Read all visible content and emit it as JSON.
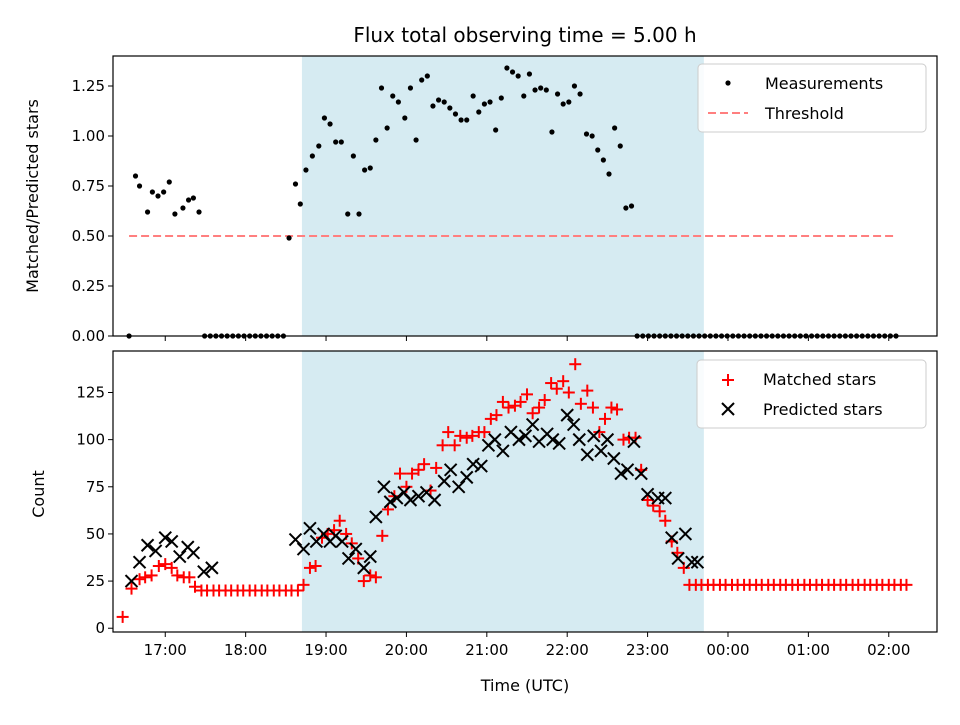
{
  "chart_data": [
    {
      "type": "scatter",
      "title": "Flux total observing time = 5.00 h",
      "xlabel": "",
      "ylabel": "Matched/Predicted stars",
      "xlim": [
        16.35,
        26.6
      ],
      "ylim": [
        0,
        1.4
      ],
      "yticks": [
        0.0,
        0.25,
        0.5,
        0.75,
        1.0,
        1.25
      ],
      "ytick_labels": [
        "0.00",
        "0.25",
        "0.50",
        "0.75",
        "1.00",
        "1.25"
      ],
      "shaded_span": [
        18.7,
        23.7
      ],
      "legend": [
        "Measurements",
        "Threshold"
      ],
      "threshold": {
        "name": "Threshold",
        "x": [
          16.55,
          26.1
        ],
        "y": 0.5,
        "color": "#ff7f7f"
      },
      "series": [
        {
          "name": "Measurements",
          "color": "#000000",
          "x": [
            16.55,
            16.63,
            16.68,
            16.78,
            16.84,
            16.91,
            16.98,
            17.05,
            17.12,
            17.22,
            17.29,
            17.35,
            17.42,
            17.49,
            17.56,
            17.63,
            17.7,
            17.77,
            17.84,
            17.91,
            17.98,
            18.05,
            18.12,
            18.19,
            18.26,
            18.33,
            18.4,
            18.47,
            18.54,
            18.62,
            18.68,
            18.75,
            18.83,
            18.91,
            18.98,
            19.05,
            19.12,
            19.19,
            19.27,
            19.34,
            19.41,
            19.48,
            19.55,
            19.62,
            19.69,
            19.76,
            19.83,
            19.9,
            19.98,
            20.05,
            20.12,
            20.19,
            20.26,
            20.33,
            20.4,
            20.47,
            20.54,
            20.61,
            20.68,
            20.75,
            20.83,
            20.9,
            20.97,
            21.04,
            21.11,
            21.18,
            21.25,
            21.32,
            21.39,
            21.46,
            21.53,
            21.6,
            21.67,
            21.74,
            21.81,
            21.88,
            21.95,
            22.02,
            22.09,
            22.16,
            22.24,
            22.31,
            22.38,
            22.45,
            22.52,
            22.59,
            22.66,
            22.73,
            22.8,
            22.87,
            22.94,
            23.01,
            23.08,
            23.15,
            23.22,
            23.29,
            23.36,
            23.43,
            23.5,
            23.57,
            23.64,
            23.71,
            23.78,
            23.85,
            23.92,
            23.99,
            24.06,
            24.13,
            24.2,
            24.27,
            24.34,
            24.41,
            24.48,
            24.55,
            24.62,
            24.69,
            24.76,
            24.83,
            24.9,
            24.97,
            25.04,
            25.11,
            25.18,
            25.25,
            25.32,
            25.39,
            25.46,
            25.53,
            25.6,
            25.67,
            25.74,
            25.81,
            25.88,
            25.95,
            26.02,
            26.09
          ],
          "y": [
            0.0,
            0.8,
            0.75,
            0.62,
            0.72,
            0.7,
            0.72,
            0.77,
            0.61,
            0.64,
            0.68,
            0.69,
            0.62,
            0.0,
            0.0,
            0.0,
            0.0,
            0.0,
            0.0,
            0.0,
            0.0,
            0.0,
            0.0,
            0.0,
            0.0,
            0.0,
            0.0,
            0.0,
            0.49,
            0.76,
            0.66,
            0.83,
            0.9,
            0.95,
            1.09,
            1.06,
            0.97,
            0.97,
            0.61,
            0.9,
            0.61,
            0.83,
            0.84,
            0.98,
            1.24,
            1.04,
            1.2,
            1.17,
            1.09,
            1.24,
            0.98,
            1.28,
            1.3,
            1.15,
            1.18,
            1.17,
            1.14,
            1.11,
            1.08,
            1.08,
            1.2,
            1.12,
            1.16,
            1.17,
            1.03,
            1.19,
            1.34,
            1.32,
            1.3,
            1.2,
            1.31,
            1.23,
            1.24,
            1.23,
            1.02,
            1.21,
            1.16,
            1.17,
            1.25,
            1.21,
            1.01,
            1.0,
            0.93,
            0.88,
            0.81,
            1.04,
            0.95,
            0.64,
            0.65,
            0.0,
            0.0,
            0.0,
            0.0,
            0.0,
            0.0,
            0.0,
            0.0,
            0.0,
            0.0,
            0.0,
            0.0,
            0.0,
            0.0,
            0.0,
            0.0,
            0.0,
            0.0,
            0.0,
            0.0,
            0.0,
            0.0,
            0.0,
            0.0,
            0.0,
            0.0,
            0.0,
            0.0,
            0.0,
            0.0,
            0.0,
            0.0,
            0.0,
            0.0,
            0.0,
            0.0,
            0.0,
            0.0,
            0.0,
            0.0,
            0.0,
            0.0,
            0.0,
            0.0,
            0.0,
            0.0,
            0.0
          ]
        }
      ]
    },
    {
      "type": "scatter",
      "title": "",
      "xlabel": "Time (UTC)",
      "ylabel": "Count",
      "xlim": [
        16.35,
        26.6
      ],
      "ylim": [
        -2,
        147
      ],
      "yticks": [
        0,
        25,
        50,
        75,
        100,
        125
      ],
      "ytick_labels": [
        "0",
        "25",
        "50",
        "75",
        "100",
        "125"
      ],
      "xticks": [
        17,
        18,
        19,
        20,
        21,
        22,
        23,
        24,
        25,
        26
      ],
      "xtick_labels": [
        "17:00",
        "18:00",
        "19:00",
        "20:00",
        "21:00",
        "22:00",
        "23:00",
        "00:00",
        "01:00",
        "02:00"
      ],
      "shaded_span": [
        18.7,
        23.7
      ],
      "legend": [
        "Matched stars",
        "Predicted stars"
      ],
      "series": [
        {
          "name": "Matched stars",
          "marker": "+",
          "color": "#ff0000",
          "x": [
            16.47,
            16.58,
            16.68,
            16.75,
            16.83,
            16.92,
            17.0,
            17.08,
            17.15,
            17.23,
            17.3,
            17.37,
            17.45,
            17.52,
            17.6,
            17.67,
            17.75,
            17.82,
            17.9,
            17.97,
            18.05,
            18.12,
            18.2,
            18.27,
            18.35,
            18.42,
            18.5,
            18.57,
            18.65,
            18.72,
            18.8,
            18.87,
            18.95,
            19.02,
            19.1,
            19.17,
            19.25,
            19.32,
            19.4,
            19.47,
            19.55,
            19.62,
            19.7,
            19.77,
            19.85,
            19.92,
            20.0,
            20.07,
            20.15,
            20.22,
            20.3,
            20.37,
            20.45,
            20.52,
            20.6,
            20.67,
            20.75,
            20.82,
            20.9,
            20.97,
            21.05,
            21.12,
            21.2,
            21.27,
            21.35,
            21.42,
            21.5,
            21.57,
            21.65,
            21.72,
            21.8,
            21.87,
            21.95,
            22.02,
            22.1,
            22.17,
            22.25,
            22.32,
            22.4,
            22.47,
            22.55,
            22.62,
            22.7,
            22.77,
            22.85,
            22.92,
            23.0,
            23.07,
            23.15,
            23.22,
            23.3,
            23.37,
            23.45,
            23.52,
            23.6,
            23.67,
            23.75,
            23.82,
            23.9,
            23.97,
            24.05,
            24.12,
            24.2,
            24.27,
            24.35,
            24.42,
            24.5,
            24.57,
            24.65,
            24.72,
            24.8,
            24.87,
            24.95,
            25.02,
            25.1,
            25.17,
            25.25,
            25.32,
            25.4,
            25.47,
            25.55,
            25.62,
            25.7,
            25.77,
            25.85,
            25.92,
            26.0,
            26.07,
            26.15,
            26.22
          ],
          "y": [
            6,
            21,
            26,
            27,
            28,
            33,
            34,
            32,
            28,
            27,
            27,
            22,
            20,
            20,
            20,
            20,
            20,
            20,
            20,
            20,
            20,
            20,
            20,
            20,
            20,
            20,
            20,
            20,
            20,
            23,
            32,
            33,
            48,
            50,
            52,
            57,
            50,
            45,
            37,
            25,
            28,
            27,
            49,
            63,
            70,
            82,
            75,
            82,
            84,
            87,
            73,
            85,
            97,
            104,
            97,
            102,
            101,
            102,
            104,
            104,
            111,
            113,
            120,
            117,
            118,
            120,
            124,
            114,
            117,
            121,
            130,
            127,
            131,
            125,
            140,
            119,
            126,
            117,
            104,
            111,
            117,
            116,
            100,
            101,
            101,
            84,
            68,
            65,
            62,
            57,
            46,
            40,
            32,
            23,
            23,
            23,
            23,
            23,
            23,
            23,
            23,
            23,
            23,
            23,
            23,
            23,
            23,
            23,
            23,
            23,
            23,
            23,
            23,
            23,
            23,
            23,
            23,
            23,
            23,
            23,
            23,
            23,
            23,
            23,
            23,
            23,
            23,
            23,
            23,
            23
          ],
          "render_count": 103
        },
        {
          "name": "Predicted stars",
          "marker": "x",
          "color": "#000000",
          "x": [
            16.58,
            16.68,
            16.78,
            16.88,
            17.0,
            17.08,
            17.18,
            17.28,
            17.35,
            17.48,
            17.58,
            18.62,
            18.72,
            18.8,
            18.88,
            18.97,
            19.05,
            19.12,
            19.2,
            19.28,
            19.37,
            19.47,
            19.55,
            19.62,
            19.72,
            19.8,
            19.88,
            19.97,
            20.05,
            20.15,
            20.25,
            20.35,
            20.47,
            20.55,
            20.65,
            20.75,
            20.83,
            20.93,
            21.02,
            21.1,
            21.2,
            21.3,
            21.4,
            21.48,
            21.57,
            21.65,
            21.75,
            21.82,
            21.9,
            22.0,
            22.08,
            22.15,
            22.25,
            22.33,
            22.42,
            22.5,
            22.58,
            22.67,
            22.75,
            22.83,
            22.92,
            23.0,
            23.13,
            23.22,
            23.3,
            23.38,
            23.47,
            23.55,
            23.62
          ],
          "y": [
            25,
            35,
            44,
            41,
            48,
            46,
            38,
            43,
            40,
            30,
            32,
            47,
            42,
            53,
            46,
            50,
            46,
            49,
            46,
            37,
            42,
            32,
            38,
            59,
            75,
            67,
            69,
            72,
            68,
            70,
            72,
            68,
            78,
            84,
            75,
            80,
            87,
            86,
            97,
            100,
            94,
            104,
            100,
            102,
            108,
            99,
            103,
            100,
            98,
            113,
            108,
            100,
            92,
            102,
            94,
            100,
            90,
            82,
            84,
            99,
            82,
            71,
            69,
            69,
            48,
            37,
            50,
            35,
            35
          ]
        }
      ]
    }
  ]
}
